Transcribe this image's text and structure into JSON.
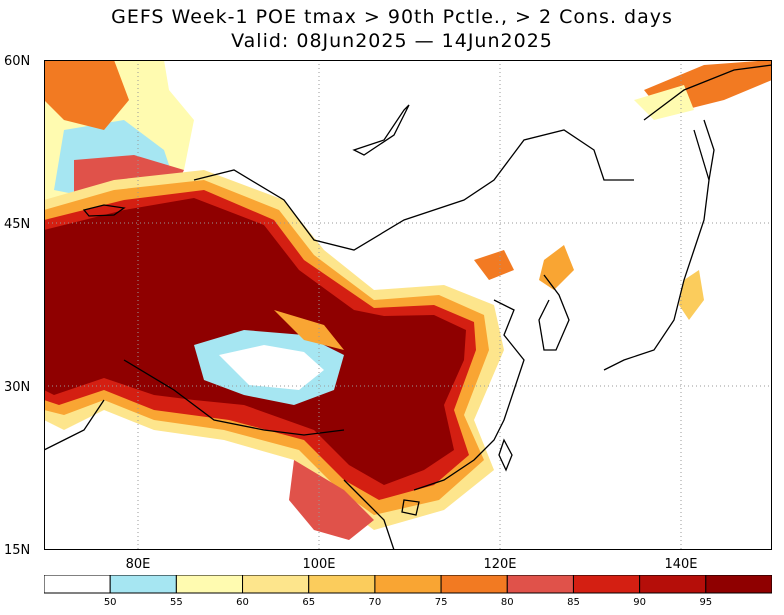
{
  "title": {
    "line1": "GEFS Week-1 POE tmax > 90th Pctle., > 2 Cons. days",
    "line2": "Valid: 08Jun2025 — 14Jun2025"
  },
  "axes": {
    "lat_labels": [
      "60N",
      "45N",
      "30N",
      "15N"
    ],
    "lon_labels": [
      "80E",
      "100E",
      "120E",
      "140E"
    ]
  },
  "colorbar": {
    "ticks": [
      "50",
      "55",
      "60",
      "65",
      "70",
      "75",
      "80",
      "85",
      "90",
      "95"
    ],
    "colors": [
      "#ffffff",
      "#a6e6f2",
      "#fffbb0",
      "#fde58c",
      "#fbcc5c",
      "#f9a533",
      "#f27a22",
      "#e0524a",
      "#d41f12",
      "#b50e09",
      "#8f0000"
    ]
  },
  "map": {
    "projection": "lat-lon",
    "lat_range": [
      15,
      60
    ],
    "lon_range": [
      70,
      150
    ],
    "gridlines": "dotted",
    "land_outline": "#000000"
  }
}
